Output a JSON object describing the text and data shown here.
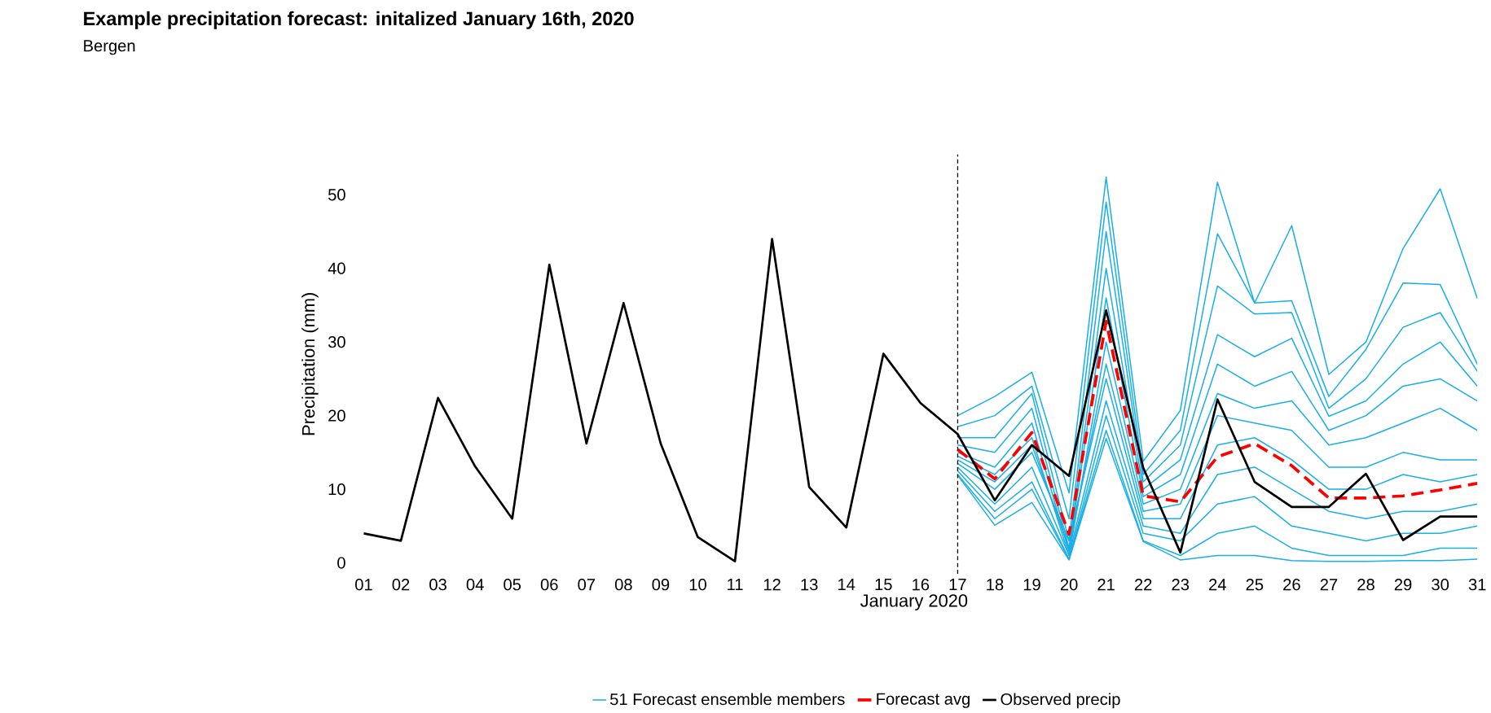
{
  "chart_data": {
    "type": "line",
    "title": "Example precipitation forecast: initalized January 16th, 2020",
    "subtitle": "Bergen",
    "xlabel": "January 2020",
    "ylabel": "Precipitation (mm)",
    "categories": [
      "01",
      "02",
      "03",
      "04",
      "05",
      "06",
      "07",
      "08",
      "09",
      "10",
      "11",
      "12",
      "13",
      "14",
      "15",
      "16",
      "17",
      "18",
      "19",
      "20",
      "21",
      "22",
      "23",
      "24",
      "25",
      "26",
      "27",
      "28",
      "29",
      "30",
      "31"
    ],
    "ylim": [
      -1.5,
      55.5
    ],
    "yticks": [
      0,
      10,
      20,
      30,
      40,
      50
    ],
    "grid": false,
    "legend": "bottom",
    "marker": "none",
    "ref_lines": [
      {
        "axis": "x",
        "value": "17",
        "color": "#000000",
        "line_style": "dashed"
      }
    ],
    "series": [
      {
        "name": "51 Forecast ensemble members",
        "color": "#1aafe6",
        "values": [
          null,
          null,
          null,
          null,
          null,
          null,
          null,
          null,
          null,
          null,
          null,
          null,
          null,
          null,
          null,
          null,
          20.0,
          22.6,
          25.9,
          9.5,
          52.4,
          13.8,
          20.7,
          51.7,
          35.3,
          45.8,
          25.6,
          30.0,
          42.7,
          50.8,
          35.9
        ]
      },
      {
        "color": "#1aafe6",
        "values": [
          null,
          null,
          null,
          null,
          null,
          null,
          null,
          null,
          null,
          null,
          null,
          null,
          null,
          null,
          null,
          null,
          18.5,
          20,
          24,
          6,
          49,
          12,
          18,
          44.7,
          35.3,
          35.6,
          22.6,
          29,
          38,
          37.8,
          27
        ]
      },
      {
        "color": "#1aafe6",
        "values": [
          null,
          null,
          null,
          null,
          null,
          null,
          null,
          null,
          null,
          null,
          null,
          null,
          null,
          null,
          null,
          null,
          17,
          17,
          23,
          3,
          45,
          11,
          16,
          37.6,
          33.8,
          34,
          21,
          25,
          32,
          34,
          26
        ]
      },
      {
        "color": "#1aafe6",
        "values": [
          null,
          null,
          null,
          null,
          null,
          null,
          null,
          null,
          null,
          null,
          null,
          null,
          null,
          null,
          null,
          null,
          16,
          15,
          21,
          2,
          40,
          10,
          14,
          31,
          28,
          30.5,
          19.9,
          22,
          27,
          30,
          24
        ]
      },
      {
        "color": "#1aafe6",
        "values": [
          null,
          null,
          null,
          null,
          null,
          null,
          null,
          null,
          null,
          null,
          null,
          null,
          null,
          null,
          null,
          null,
          15,
          13,
          19,
          1.5,
          36,
          9,
          12,
          27,
          24,
          26,
          18,
          20,
          24,
          25,
          22
        ]
      },
      {
        "color": "#1aafe6",
        "values": [
          null,
          null,
          null,
          null,
          null,
          null,
          null,
          null,
          null,
          null,
          null,
          null,
          null,
          null,
          null,
          null,
          14.5,
          12,
          17,
          1,
          30,
          8,
          10,
          23,
          21,
          22,
          16,
          17,
          19,
          21,
          18
        ]
      },
      {
        "color": "#1aafe6",
        "values": [
          null,
          null,
          null,
          null,
          null,
          null,
          null,
          null,
          null,
          null,
          null,
          null,
          null,
          null,
          null,
          null,
          14,
          11,
          16,
          2,
          27,
          7,
          8,
          20,
          19,
          18,
          13,
          13,
          15,
          14,
          14
        ]
      },
      {
        "color": "#1aafe6",
        "values": [
          null,
          null,
          null,
          null,
          null,
          null,
          null,
          null,
          null,
          null,
          null,
          null,
          null,
          null,
          null,
          null,
          13.5,
          10,
          15,
          3,
          25,
          6,
          6,
          16,
          17,
          14,
          10,
          10,
          12,
          11,
          12
        ]
      },
      {
        "color": "#1aafe6",
        "values": [
          null,
          null,
          null,
          null,
          null,
          null,
          null,
          null,
          null,
          null,
          null,
          null,
          null,
          null,
          null,
          null,
          13,
          8,
          13,
          1,
          22,
          5,
          4,
          12,
          13,
          10,
          7,
          6,
          7,
          7,
          8
        ]
      },
      {
        "color": "#1aafe6",
        "values": [
          null,
          null,
          null,
          null,
          null,
          null,
          null,
          null,
          null,
          null,
          null,
          null,
          null,
          null,
          null,
          null,
          12.5,
          7,
          11,
          0.5,
          20,
          4,
          3,
          8,
          9,
          5,
          4,
          3,
          4,
          4,
          5
        ]
      },
      {
        "color": "#1aafe6",
        "values": [
          null,
          null,
          null,
          null,
          null,
          null,
          null,
          null,
          null,
          null,
          null,
          null,
          null,
          null,
          null,
          null,
          12,
          6,
          10,
          0.5,
          18,
          3,
          1,
          4,
          5,
          2,
          1,
          1,
          1,
          2,
          2
        ]
      },
      {
        "color": "#1aafe6",
        "values": [
          null,
          null,
          null,
          null,
          null,
          null,
          null,
          null,
          null,
          null,
          null,
          null,
          null,
          null,
          null,
          null,
          11.9,
          5.1,
          8.2,
          0.4,
          16.9,
          2.9,
          0.4,
          1,
          1,
          0.3,
          0.2,
          0.2,
          0.3,
          0.3,
          0.5
        ]
      },
      {
        "name": "Forecast avg",
        "color": "#ff0000",
        "line_style": "dashed",
        "values": [
          null,
          null,
          null,
          null,
          null,
          null,
          null,
          null,
          null,
          null,
          null,
          null,
          null,
          null,
          null,
          null,
          15.4,
          11.4,
          17.7,
          3.9,
          32.8,
          9.1,
          8.3,
          14.4,
          16.2,
          13.2,
          8.8,
          8.8,
          9.1,
          9.9,
          10.8
        ]
      },
      {
        "name": "Observed precip",
        "color": "#000000",
        "values": [
          4.0,
          3.0,
          22.4,
          13.1,
          6.0,
          40.5,
          16.2,
          35.3,
          16.2,
          3.5,
          0.2,
          44.0,
          10.3,
          4.8,
          28.4,
          21.7,
          17.5,
          8.5,
          16.0,
          11.8,
          34.3,
          12.9,
          1.4,
          22.2,
          11.0,
          7.6,
          7.6,
          12.1,
          3.1,
          6.3,
          6.3
        ]
      }
    ]
  }
}
